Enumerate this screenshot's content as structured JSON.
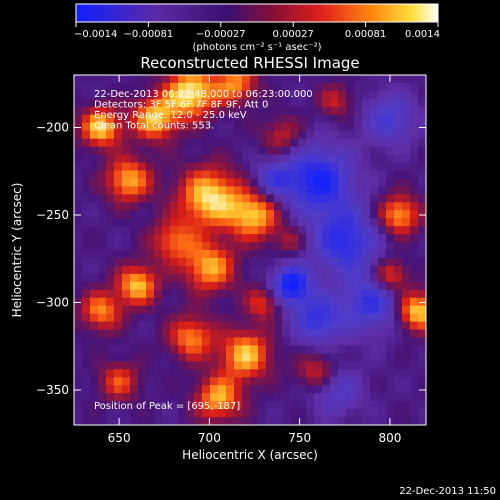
{
  "colorbar": {
    "ticks": [
      "−0.0014",
      "−0.00081",
      "−0.00027",
      "0.00027",
      "0.00081",
      "0.0014"
    ],
    "unit_label": "(photons cm⁻² s⁻¹ asec⁻²)",
    "range": [
      -0.0014,
      0.0014
    ]
  },
  "chart_data": {
    "type": "heatmap",
    "title": "Reconstructed RHESSI Image",
    "xlabel": "Heliocentric X (arcsec)",
    "ylabel": "Heliocentric Y (arcsec)",
    "xlim": [
      625,
      820
    ],
    "ylim": [
      -370,
      -170
    ],
    "x_ticks": [
      650,
      700,
      750,
      800
    ],
    "y_ticks": [
      -200,
      -250,
      -300,
      -350
    ],
    "x_tick_labels": [
      "650",
      "700",
      "750",
      "800"
    ],
    "y_tick_labels": [
      "−200",
      "−250",
      "−300",
      "−350"
    ],
    "annotations": [
      "22-Dec-2013 06:22:48.000 to 06:23:00.000",
      "Detectors: 3F 5F 6F 7F 8F 9F, Att 0",
      "Energy Range: 12.0 - 25.0 keV",
      "Clean    Total counts: 553."
    ],
    "peak_label": "Position of Peak = [695,-187]",
    "peak": [
      695,
      -187
    ],
    "colormap": "rhessi-blue-purple-red-yellow-white"
  },
  "footer": {
    "timestamp": "22-Dec-2013 11:50"
  }
}
